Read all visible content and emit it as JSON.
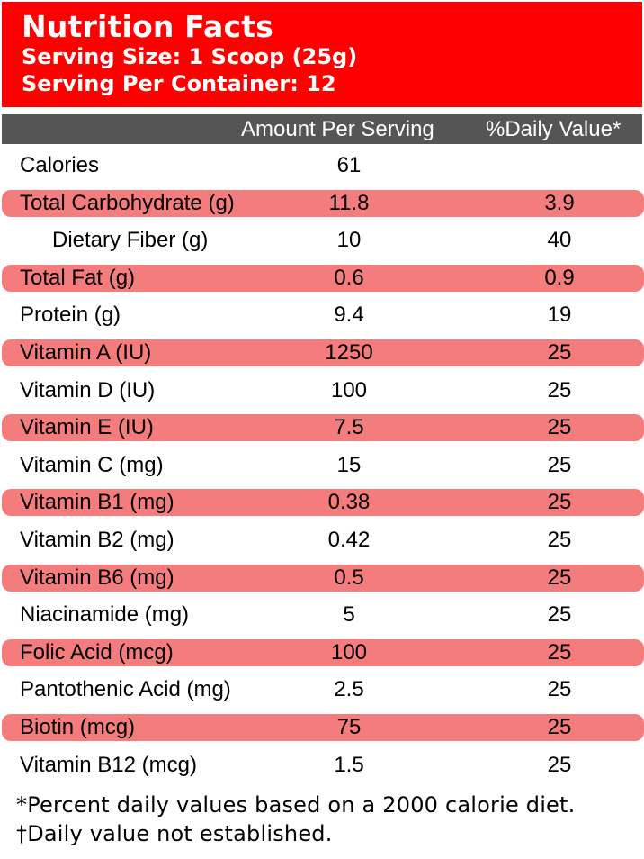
{
  "header": {
    "title": "Nutrition Facts",
    "serving_size": "Serving Size: 1 Scoop (25g)",
    "servings_per_container": "Serving Per Container: 12"
  },
  "columns": {
    "amount": "Amount Per Serving",
    "daily_value": "%Daily Value*"
  },
  "rows": [
    {
      "name": "Calories",
      "amount": "61",
      "dv": "",
      "shaded": false,
      "indent": false
    },
    {
      "name": "Total Carbohydrate (g)",
      "amount": "11.8",
      "dv": "3.9",
      "shaded": true,
      "indent": false
    },
    {
      "name": "Dietary Fiber (g)",
      "amount": "10",
      "dv": "40",
      "shaded": false,
      "indent": true
    },
    {
      "name": "Total Fat (g)",
      "amount": "0.6",
      "dv": "0.9",
      "shaded": true,
      "indent": false
    },
    {
      "name": "Protein (g)",
      "amount": "9.4",
      "dv": "19",
      "shaded": false,
      "indent": false
    },
    {
      "name": "Vitamin A (IU)",
      "amount": "1250",
      "dv": "25",
      "shaded": true,
      "indent": false
    },
    {
      "name": "Vitamin D (IU)",
      "amount": "100",
      "dv": "25",
      "shaded": false,
      "indent": false
    },
    {
      "name": "Vitamin E (IU)",
      "amount": "7.5",
      "dv": "25",
      "shaded": true,
      "indent": false
    },
    {
      "name": "Vitamin C (mg)",
      "amount": "15",
      "dv": "25",
      "shaded": false,
      "indent": false
    },
    {
      "name": "Vitamin B1 (mg)",
      "amount": "0.38",
      "dv": "25",
      "shaded": true,
      "indent": false
    },
    {
      "name": "Vitamin B2 (mg)",
      "amount": "0.42",
      "dv": "25",
      "shaded": false,
      "indent": false
    },
    {
      "name": "Vitamin B6 (mg)",
      "amount": "0.5",
      "dv": "25",
      "shaded": true,
      "indent": false
    },
    {
      "name": "Niacinamide (mg)",
      "amount": "5",
      "dv": "25",
      "shaded": false,
      "indent": false
    },
    {
      "name": "Folic Acid (mcg)",
      "amount": "100",
      "dv": "25",
      "shaded": true,
      "indent": false
    },
    {
      "name": "Pantothenic Acid (mg)",
      "amount": "2.5",
      "dv": "25",
      "shaded": false,
      "indent": false
    },
    {
      "name": "Biotin (mcg)",
      "amount": "75",
      "dv": "25",
      "shaded": true,
      "indent": false
    },
    {
      "name": "Vitamin B12 (mcg)",
      "amount": "1.5",
      "dv": "25",
      "shaded": false,
      "indent": false
    }
  ],
  "footer": {
    "note1": "*Percent daily values based on a 2000 calorie diet.",
    "note2": "†Daily value not established."
  },
  "colors": {
    "header_bg": "#ff0000",
    "column_header_bg": "#555555",
    "row_shade": "#f47c7c"
  }
}
